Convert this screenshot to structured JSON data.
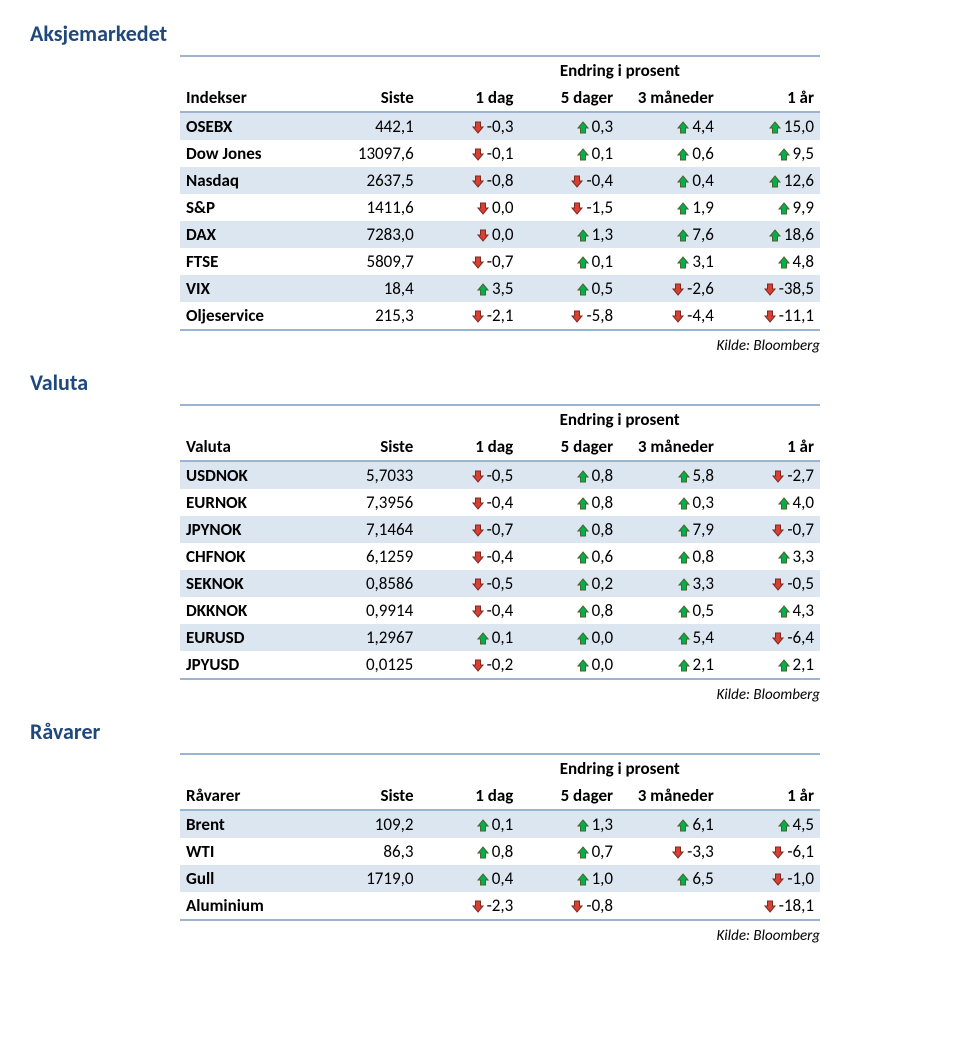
{
  "colors": {
    "heading": "#1f497d",
    "band": "#dce6f1",
    "border": "#9cb3d1",
    "up_fill": "#00b050",
    "up_stroke": "#4f6228",
    "down_fill": "#d84034",
    "down_stroke": "#7d2b22"
  },
  "common": {
    "change_heading": "Endring i prosent",
    "col_siste": "Siste",
    "col_1dag": "1 dag",
    "col_5dager": "5 dager",
    "col_3mnd": "3 måneder",
    "col_1ar": "1 år",
    "source": "Kilde: Bloomberg"
  },
  "sections": [
    {
      "title": "Aksjemarkedet",
      "row_label": "Indekser",
      "rows": [
        {
          "name": "OSEBX",
          "siste": "442,1",
          "c": [
            {
              "d": "down",
              "v": "-0,3"
            },
            {
              "d": "up",
              "v": "0,3"
            },
            {
              "d": "up",
              "v": "4,4"
            },
            {
              "d": "up",
              "v": "15,0"
            }
          ]
        },
        {
          "name": "Dow Jones",
          "siste": "13097,6",
          "c": [
            {
              "d": "down",
              "v": "-0,1"
            },
            {
              "d": "up",
              "v": "0,1"
            },
            {
              "d": "up",
              "v": "0,6"
            },
            {
              "d": "up",
              "v": "9,5"
            }
          ]
        },
        {
          "name": "Nasdaq",
          "siste": "2637,5",
          "c": [
            {
              "d": "down",
              "v": "-0,8"
            },
            {
              "d": "down",
              "v": "-0,4"
            },
            {
              "d": "up",
              "v": "0,4"
            },
            {
              "d": "up",
              "v": "12,6"
            }
          ]
        },
        {
          "name": "S&P",
          "siste": "1411,6",
          "c": [
            {
              "d": "down",
              "v": "0,0"
            },
            {
              "d": "down",
              "v": "-1,5"
            },
            {
              "d": "up",
              "v": "1,9"
            },
            {
              "d": "up",
              "v": "9,9"
            }
          ]
        },
        {
          "name": "DAX",
          "siste": "7283,0",
          "c": [
            {
              "d": "down",
              "v": "0,0"
            },
            {
              "d": "up",
              "v": "1,3"
            },
            {
              "d": "up",
              "v": "7,6"
            },
            {
              "d": "up",
              "v": "18,6"
            }
          ]
        },
        {
          "name": "FTSE",
          "siste": "5809,7",
          "c": [
            {
              "d": "down",
              "v": "-0,7"
            },
            {
              "d": "up",
              "v": "0,1"
            },
            {
              "d": "up",
              "v": "3,1"
            },
            {
              "d": "up",
              "v": "4,8"
            }
          ]
        },
        {
          "name": "VIX",
          "siste": "18,4",
          "c": [
            {
              "d": "up",
              "v": "3,5"
            },
            {
              "d": "up",
              "v": "0,5"
            },
            {
              "d": "down",
              "v": "-2,6"
            },
            {
              "d": "down",
              "v": "-38,5"
            }
          ]
        },
        {
          "name": "Oljeservice",
          "siste": "215,3",
          "c": [
            {
              "d": "down",
              "v": "-2,1"
            },
            {
              "d": "down",
              "v": "-5,8"
            },
            {
              "d": "down",
              "v": "-4,4"
            },
            {
              "d": "down",
              "v": "-11,1"
            }
          ]
        }
      ]
    },
    {
      "title": "Valuta",
      "row_label": "Valuta",
      "rows": [
        {
          "name": "USDNOK",
          "siste": "5,7033",
          "c": [
            {
              "d": "down",
              "v": "-0,5"
            },
            {
              "d": "up",
              "v": "0,8"
            },
            {
              "d": "up",
              "v": "5,8"
            },
            {
              "d": "down",
              "v": "-2,7"
            }
          ]
        },
        {
          "name": "EURNOK",
          "siste": "7,3956",
          "c": [
            {
              "d": "down",
              "v": "-0,4"
            },
            {
              "d": "up",
              "v": "0,8"
            },
            {
              "d": "up",
              "v": "0,3"
            },
            {
              "d": "up",
              "v": "4,0"
            }
          ]
        },
        {
          "name": "JPYNOK",
          "siste": "7,1464",
          "c": [
            {
              "d": "down",
              "v": "-0,7"
            },
            {
              "d": "up",
              "v": "0,8"
            },
            {
              "d": "up",
              "v": "7,9"
            },
            {
              "d": "down",
              "v": "-0,7"
            }
          ]
        },
        {
          "name": "CHFNOK",
          "siste": "6,1259",
          "c": [
            {
              "d": "down",
              "v": "-0,4"
            },
            {
              "d": "up",
              "v": "0,6"
            },
            {
              "d": "up",
              "v": "0,8"
            },
            {
              "d": "up",
              "v": "3,3"
            }
          ]
        },
        {
          "name": "SEKNOK",
          "siste": "0,8586",
          "c": [
            {
              "d": "down",
              "v": "-0,5"
            },
            {
              "d": "up",
              "v": "0,2"
            },
            {
              "d": "up",
              "v": "3,3"
            },
            {
              "d": "down",
              "v": "-0,5"
            }
          ]
        },
        {
          "name": "DKKNOK",
          "siste": "0,9914",
          "c": [
            {
              "d": "down",
              "v": "-0,4"
            },
            {
              "d": "up",
              "v": "0,8"
            },
            {
              "d": "up",
              "v": "0,5"
            },
            {
              "d": "up",
              "v": "4,3"
            }
          ]
        },
        {
          "name": "EURUSD",
          "siste": "1,2967",
          "c": [
            {
              "d": "up",
              "v": "0,1"
            },
            {
              "d": "up",
              "v": "0,0"
            },
            {
              "d": "up",
              "v": "5,4"
            },
            {
              "d": "down",
              "v": "-6,4"
            }
          ]
        },
        {
          "name": "JPYUSD",
          "siste": "0,0125",
          "c": [
            {
              "d": "down",
              "v": "-0,2"
            },
            {
              "d": "up",
              "v": "0,0"
            },
            {
              "d": "up",
              "v": "2,1"
            },
            {
              "d": "up",
              "v": "2,1"
            }
          ]
        }
      ]
    },
    {
      "title": "Råvarer",
      "row_label": "Råvarer",
      "rows": [
        {
          "name": "Brent",
          "siste": "109,2",
          "c": [
            {
              "d": "up",
              "v": "0,1"
            },
            {
              "d": "up",
              "v": "1,3"
            },
            {
              "d": "up",
              "v": "6,1"
            },
            {
              "d": "up",
              "v": "4,5"
            }
          ]
        },
        {
          "name": "WTI",
          "siste": "86,3",
          "c": [
            {
              "d": "up",
              "v": "0,8"
            },
            {
              "d": "up",
              "v": "0,7"
            },
            {
              "d": "down",
              "v": "-3,3"
            },
            {
              "d": "down",
              "v": "-6,1"
            }
          ]
        },
        {
          "name": "Gull",
          "siste": "1719,0",
          "c": [
            {
              "d": "up",
              "v": "0,4"
            },
            {
              "d": "up",
              "v": "1,0"
            },
            {
              "d": "up",
              "v": "6,5"
            },
            {
              "d": "down",
              "v": "-1,0"
            }
          ]
        },
        {
          "name": "Aluminium",
          "siste": "",
          "c": [
            {
              "d": "down",
              "v": "-2,3"
            },
            {
              "d": "down",
              "v": "-0,8"
            },
            {
              "d": "none",
              "v": ""
            },
            {
              "d": "down",
              "v": "-18,1"
            }
          ]
        }
      ]
    }
  ]
}
